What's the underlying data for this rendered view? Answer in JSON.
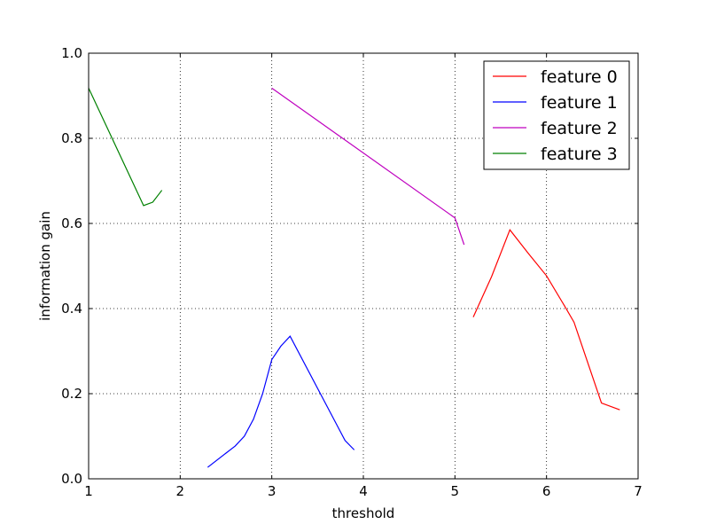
{
  "chart_data": {
    "type": "line",
    "xlabel": "threshold",
    "ylabel": "information gain",
    "xlim": [
      1,
      7
    ],
    "ylim": [
      0.0,
      1.0
    ],
    "grid": true,
    "legend_position": "top-right",
    "x_ticks": [
      "1",
      "2",
      "3",
      "4",
      "5",
      "6",
      "7"
    ],
    "y_ticks": [
      "0.0",
      "0.2",
      "0.4",
      "0.6",
      "0.8",
      "1.0"
    ],
    "series": [
      {
        "name": "feature 0",
        "color": "#ff0000",
        "points": [
          [
            5.2,
            0.38
          ],
          [
            5.4,
            0.475
          ],
          [
            5.6,
            0.585
          ],
          [
            5.8,
            0.53
          ],
          [
            6.0,
            0.477
          ],
          [
            6.2,
            0.405
          ],
          [
            6.3,
            0.368
          ],
          [
            6.6,
            0.178
          ],
          [
            6.8,
            0.162
          ]
        ]
      },
      {
        "name": "feature 1",
        "color": "#0000ff",
        "points": [
          [
            2.3,
            0.027
          ],
          [
            2.6,
            0.077
          ],
          [
            2.7,
            0.1
          ],
          [
            2.8,
            0.14
          ],
          [
            2.9,
            0.2
          ],
          [
            3.0,
            0.28
          ],
          [
            3.1,
            0.312
          ],
          [
            3.2,
            0.335
          ],
          [
            3.8,
            0.09
          ],
          [
            3.9,
            0.068
          ]
        ]
      },
      {
        "name": "feature 2",
        "color": "#bf00bf",
        "points": [
          [
            3.0,
            0.918
          ],
          [
            5.0,
            0.613
          ],
          [
            5.1,
            0.55
          ]
        ]
      },
      {
        "name": "feature 3",
        "color": "#008000",
        "points": [
          [
            1.0,
            0.918
          ],
          [
            1.6,
            0.642
          ],
          [
            1.7,
            0.65
          ],
          [
            1.8,
            0.678
          ]
        ]
      }
    ]
  }
}
